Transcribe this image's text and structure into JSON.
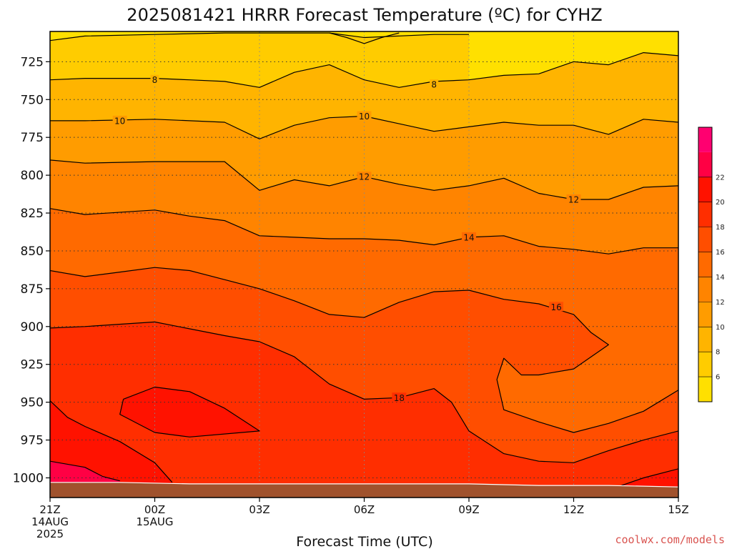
{
  "chart_data": {
    "type": "heatmap",
    "subtype": "filled-contour",
    "title": "2025081421 HRRR Forecast Temperature (ºC) for CYHZ",
    "xlabel": "Forecast Time (UTC)",
    "ylabel": "",
    "x_ticks": [
      {
        "hour": 0,
        "lines": [
          "21Z",
          "14AUG",
          "2025"
        ]
      },
      {
        "hour": 3,
        "lines": [
          "00Z",
          "15AUG"
        ]
      },
      {
        "hour": 6,
        "lines": [
          "03Z"
        ]
      },
      {
        "hour": 9,
        "lines": [
          "06Z"
        ]
      },
      {
        "hour": 12,
        "lines": [
          "09Z"
        ]
      },
      {
        "hour": 15,
        "lines": [
          "12Z"
        ]
      },
      {
        "hour": 18,
        "lines": [
          "15Z"
        ]
      }
    ],
    "xlim": [
      0,
      18
    ],
    "y_ticks": [
      725,
      750,
      775,
      800,
      825,
      850,
      875,
      900,
      925,
      950,
      975,
      1000
    ],
    "ylim": [
      1013,
      705
    ],
    "grid": true,
    "colorbar": {
      "levels": [
        4,
        6,
        8,
        10,
        12,
        14,
        16,
        18,
        20,
        22,
        24
      ],
      "labels": [
        "6",
        "8",
        "10",
        "12",
        "14",
        "16",
        "18",
        "20",
        "22"
      ],
      "colors": [
        "#ffe000",
        "#ffcc00",
        "#ffb400",
        "#ff9c00",
        "#ff8400",
        "#ff6a00",
        "#ff4e00",
        "#ff2e00",
        "#ff1200",
        "#ff0044",
        "#ff0070"
      ]
    },
    "ground_color": "#a0522d",
    "contours": [
      {
        "level": 6,
        "label": "",
        "points": [
          [
            0,
            711
          ],
          [
            1,
            708
          ],
          [
            3,
            707
          ],
          [
            5,
            706
          ],
          [
            6.5,
            706
          ],
          [
            8,
            706
          ],
          [
            9,
            709
          ],
          [
            11,
            707
          ],
          [
            12,
            707
          ]
        ]
      },
      {
        "level": 6,
        "label": "",
        "points": [
          [
            8,
            706
          ],
          [
            8.5,
            709
          ],
          [
            9,
            713
          ],
          [
            9.5,
            709
          ],
          [
            10,
            706
          ]
        ]
      },
      {
        "level": 8,
        "label": "8",
        "points": [
          [
            0,
            737
          ],
          [
            1,
            736
          ],
          [
            3,
            736
          ],
          [
            4,
            737
          ],
          [
            5,
            738
          ],
          [
            6,
            742
          ],
          [
            7,
            732
          ],
          [
            8,
            727
          ],
          [
            9,
            737
          ],
          [
            10,
            742
          ],
          [
            11,
            738
          ],
          [
            12,
            737
          ],
          [
            13,
            734
          ],
          [
            14,
            733
          ],
          [
            15,
            725
          ],
          [
            16,
            727
          ],
          [
            17,
            719
          ],
          [
            18,
            721
          ]
        ]
      },
      {
        "level": 10,
        "label": "10",
        "points": [
          [
            0,
            764
          ],
          [
            1,
            764
          ],
          [
            3,
            763
          ],
          [
            5,
            765
          ],
          [
            6,
            776
          ],
          [
            7,
            767
          ],
          [
            8,
            762
          ],
          [
            9,
            761
          ],
          [
            10,
            766
          ],
          [
            11,
            771
          ],
          [
            12,
            768
          ],
          [
            13,
            765
          ],
          [
            14,
            767
          ],
          [
            15,
            767
          ],
          [
            16,
            773
          ],
          [
            17,
            763
          ],
          [
            18,
            765
          ]
        ]
      },
      {
        "level": 12,
        "label": "12",
        "points": [
          [
            0,
            790
          ],
          [
            1,
            792
          ],
          [
            3,
            791
          ],
          [
            5,
            791
          ],
          [
            6,
            810
          ],
          [
            7,
            803
          ],
          [
            8,
            807
          ],
          [
            9,
            801
          ],
          [
            10,
            806
          ],
          [
            11,
            810
          ],
          [
            12,
            807
          ],
          [
            13,
            802
          ],
          [
            14,
            812
          ],
          [
            15,
            816
          ],
          [
            16,
            816
          ],
          [
            17,
            808
          ],
          [
            18,
            807
          ]
        ]
      },
      {
        "level": 14,
        "label": "14",
        "points": [
          [
            0,
            822
          ],
          [
            1,
            826
          ],
          [
            3,
            823
          ],
          [
            4,
            827
          ],
          [
            5,
            830
          ],
          [
            6,
            840
          ],
          [
            7,
            841
          ],
          [
            8,
            842
          ],
          [
            9,
            842
          ],
          [
            10,
            843
          ],
          [
            11,
            846
          ],
          [
            12,
            841
          ],
          [
            13,
            840
          ],
          [
            14,
            847
          ],
          [
            15,
            849
          ],
          [
            16,
            852
          ],
          [
            17,
            848
          ],
          [
            18,
            848
          ]
        ]
      },
      {
        "level": 16,
        "label": "16",
        "points": [
          [
            0,
            863
          ],
          [
            1,
            867
          ],
          [
            2,
            864
          ],
          [
            3,
            861
          ],
          [
            4,
            863
          ],
          [
            5,
            869
          ],
          [
            6,
            875
          ],
          [
            7,
            883
          ],
          [
            8,
            892
          ],
          [
            9,
            894
          ],
          [
            10,
            884
          ],
          [
            11,
            877
          ],
          [
            12,
            876
          ],
          [
            13,
            882
          ],
          [
            14,
            885
          ],
          [
            15,
            892
          ],
          [
            15.5,
            904
          ],
          [
            16,
            912
          ],
          [
            15,
            928
          ],
          [
            14,
            932
          ],
          [
            13.5,
            932
          ],
          [
            13,
            921
          ],
          [
            12.8,
            935
          ],
          [
            13,
            955
          ],
          [
            14,
            963
          ],
          [
            15,
            970
          ],
          [
            16,
            964
          ],
          [
            17,
            956
          ],
          [
            18,
            942
          ]
        ]
      },
      {
        "level": 18,
        "label": "18",
        "points": [
          [
            0,
            901
          ],
          [
            1,
            900
          ],
          [
            3,
            897
          ],
          [
            5,
            906
          ],
          [
            6,
            910
          ],
          [
            7,
            920
          ],
          [
            8,
            938
          ],
          [
            9,
            948
          ],
          [
            10,
            947
          ],
          [
            11,
            941
          ],
          [
            11.5,
            950
          ],
          [
            12,
            969
          ],
          [
            13,
            984
          ],
          [
            14,
            989
          ],
          [
            15,
            990
          ],
          [
            16,
            982
          ],
          [
            17,
            975
          ],
          [
            18,
            969
          ]
        ]
      },
      {
        "level": 20,
        "label": "",
        "points": [
          [
            2.1,
            948
          ],
          [
            3,
            940
          ],
          [
            4,
            943
          ],
          [
            5,
            954
          ],
          [
            6,
            969
          ],
          [
            4,
            973
          ],
          [
            3,
            970
          ],
          [
            2,
            958
          ],
          [
            2.1,
            948
          ]
        ]
      },
      {
        "level": 20,
        "label": "",
        "points": [
          [
            0,
            949
          ],
          [
            0.5,
            960
          ],
          [
            1,
            966
          ],
          [
            2,
            976
          ],
          [
            3,
            990
          ],
          [
            3.5,
            1003
          ]
        ]
      },
      {
        "level": 20,
        "label": "",
        "points": [
          [
            16,
            1008
          ],
          [
            17,
            1000
          ],
          [
            18,
            994
          ]
        ]
      },
      {
        "level": 22,
        "label": "",
        "points": [
          [
            0,
            989
          ],
          [
            1,
            993
          ],
          [
            1.5,
            999
          ],
          [
            2,
            1002
          ]
        ]
      }
    ],
    "contour_labels": [
      {
        "level": 8,
        "text": "8",
        "x": 3,
        "y": 737
      },
      {
        "level": 8,
        "text": "8",
        "x": 11,
        "y": 740
      },
      {
        "level": 10,
        "text": "10",
        "x": 2,
        "y": 764
      },
      {
        "level": 10,
        "text": "10",
        "x": 9,
        "y": 761
      },
      {
        "level": 12,
        "text": "12",
        "x": 9,
        "y": 801
      },
      {
        "level": 12,
        "text": "12",
        "x": 15,
        "y": 816
      },
      {
        "level": 14,
        "text": "14",
        "x": 12,
        "y": 841
      },
      {
        "level": 16,
        "text": "16",
        "x": 14.5,
        "y": 887
      },
      {
        "level": 18,
        "text": "18",
        "x": 10,
        "y": 947
      }
    ],
    "credit": "coolwx.com/models"
  }
}
